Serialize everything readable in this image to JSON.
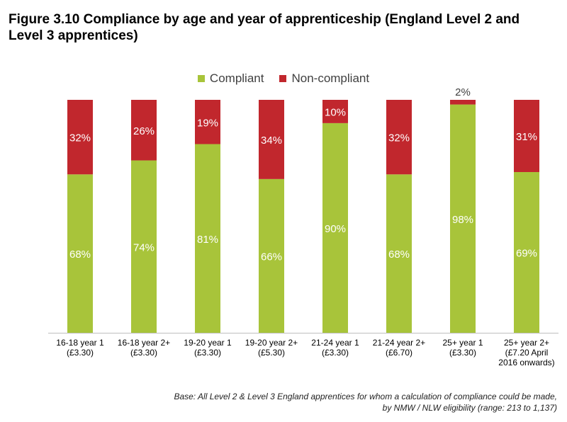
{
  "title": "Figure 3.10 Compliance by age and year of apprenticeship (England Level 2 and Level 3 apprentices)",
  "footnote": [
    "Base: All Level 2 & Level 3 England apprentices for whom a calculation of compliance could be made,",
    "by NMW / NLW eligibility (range: 213 to 1,137)"
  ],
  "legend": [
    {
      "label": "Compliant",
      "color": "#a8c43a"
    },
    {
      "label": "Non-compliant",
      "color": "#c1272d"
    }
  ],
  "chart_data": {
    "type": "bar",
    "stacked": true,
    "normalized_100": true,
    "categories": [
      [
        "16-18 year 1",
        "(£3.30)"
      ],
      [
        "16-18 year 2+",
        "(£3.30)"
      ],
      [
        "19-20 year 1",
        "(£3.30)"
      ],
      [
        "19-20 year 2+",
        "(£5.30)"
      ],
      [
        "21-24 year 1",
        "(£3.30)"
      ],
      [
        "21-24 year 2+",
        "(£6.70)"
      ],
      [
        "25+ year 1",
        "(£3.30)"
      ],
      [
        "25+ year 2+",
        "(£7.20 April",
        "2016 onwards)"
      ]
    ],
    "series": [
      {
        "name": "Compliant",
        "color": "#a8c43a",
        "values": [
          68,
          74,
          81,
          66,
          90,
          68,
          98,
          69
        ],
        "labels": [
          "68%",
          "74%",
          "81%",
          "66%",
          "90%",
          "68%",
          "98%",
          "69%"
        ]
      },
      {
        "name": "Non-compliant",
        "color": "#c1272d",
        "values": [
          32,
          26,
          19,
          34,
          10,
          32,
          2,
          31
        ],
        "labels": [
          "32%",
          "26%",
          "19%",
          "34%",
          "10%",
          "32%",
          "2%",
          "31%"
        ]
      }
    ],
    "ylim": [
      0,
      100
    ],
    "legend_position": "top-center",
    "grid": false
  }
}
